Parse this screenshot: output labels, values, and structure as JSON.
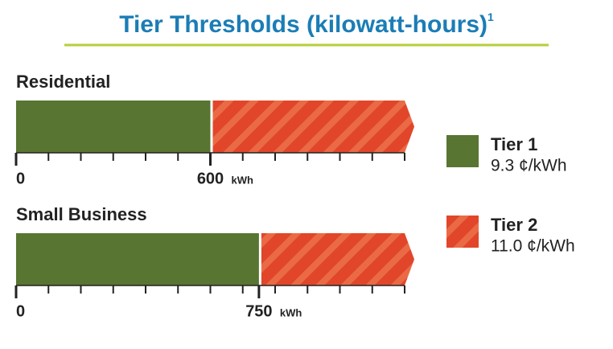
{
  "chart_data": {
    "type": "bar",
    "title": "Tier Thresholds (kilowatt-hours)",
    "title_note": "1",
    "unit": "kWh",
    "series": [
      {
        "name": "Tier 1",
        "rate": "9.3 ¢/kWh",
        "color": "#587532"
      },
      {
        "name": "Tier 2",
        "rate": "11.0 ¢/kWh",
        "color": "#e1462a"
      }
    ],
    "panels": [
      {
        "name": "Residential",
        "value": 600,
        "xticks": [
          0,
          600
        ]
      },
      {
        "name": "Small Business",
        "value": 750,
        "xticks": [
          0,
          750
        ]
      }
    ],
    "xlim": [
      0,
      1200
    ],
    "minor_xticks": [
      0,
      100,
      200,
      300,
      400,
      500,
      600,
      700,
      800,
      900,
      1000,
      1100,
      1200
    ]
  }
}
